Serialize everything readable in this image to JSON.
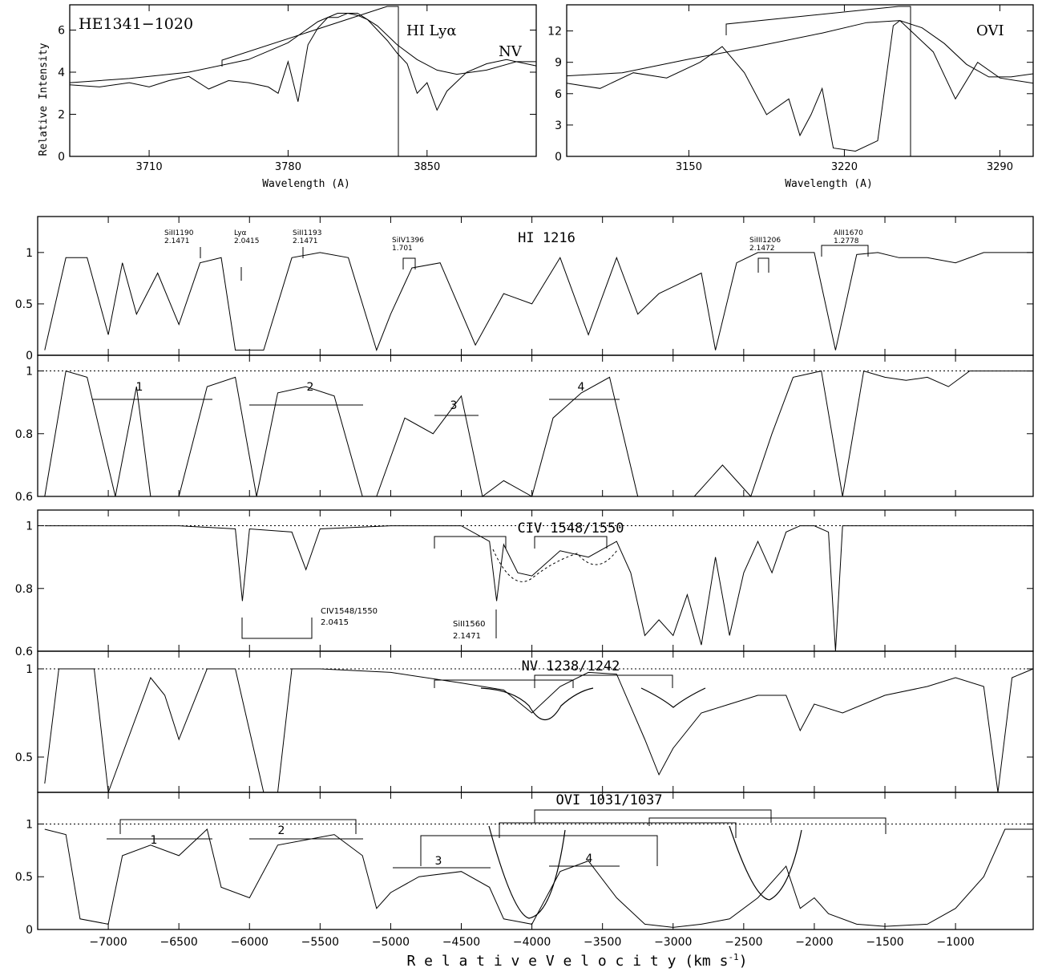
{
  "figure": {
    "x_axis_label": "R e l a t i v e     V e l o c i t y   (km s",
    "x_axis_sup": "-1",
    "x_axis_close": ")",
    "colors": {
      "line": "#000000",
      "background": "#ffffff"
    }
  },
  "chart_data": [
    {
      "type": "line",
      "id": "top-left",
      "object_label": "HE1341−1020",
      "xlabel": "Wavelength (A)",
      "ylabel": "Relative Intensity",
      "xlim": [
        3670,
        3905
      ],
      "ylim": [
        0,
        7.2
      ],
      "xticks": [
        3710,
        3780,
        3850
      ],
      "yticks": [
        0,
        2,
        4,
        6
      ],
      "annotations": [
        "HI  Lyα",
        "NV"
      ],
      "series": [
        {
          "kind": "spectrum",
          "x": [
            3670,
            3685,
            3700,
            3710,
            3720,
            3730,
            3740,
            3750,
            3760,
            3770,
            3775,
            3780,
            3785,
            3790,
            3795,
            3800,
            3805,
            3810,
            3815,
            3820,
            3825,
            3830,
            3835,
            3840,
            3845,
            3850,
            3855,
            3860,
            3870,
            3880,
            3890,
            3905
          ],
          "y": [
            3.4,
            3.3,
            3.5,
            3.3,
            3.6,
            3.8,
            3.2,
            3.6,
            3.5,
            3.3,
            3.0,
            4.5,
            2.6,
            5.3,
            6.1,
            6.6,
            6.6,
            6.8,
            6.7,
            6.5,
            6.0,
            5.5,
            4.9,
            4.4,
            3.0,
            3.5,
            2.2,
            3.1,
            4.0,
            4.4,
            4.6,
            4.3
          ]
        },
        {
          "kind": "continuum",
          "x": [
            3670,
            3700,
            3730,
            3760,
            3780,
            3795,
            3805,
            3815,
            3825,
            3835,
            3845,
            3855,
            3865,
            3880,
            3895,
            3905
          ],
          "y": [
            3.5,
            3.7,
            4.0,
            4.6,
            5.4,
            6.4,
            6.8,
            6.8,
            6.2,
            5.3,
            4.6,
            4.1,
            3.9,
            4.1,
            4.5,
            4.5
          ]
        }
      ]
    },
    {
      "type": "line",
      "id": "top-right",
      "object_label": "",
      "xlabel": "Wavelength (A)",
      "ylabel": "",
      "xlim": [
        3095,
        3305
      ],
      "ylim": [
        0,
        14.5
      ],
      "xticks": [
        3150,
        3220,
        3290
      ],
      "yticks": [
        0,
        3,
        6,
        9,
        12
      ],
      "annotations": [
        "OVI"
      ],
      "series": [
        {
          "kind": "spectrum",
          "x": [
            3095,
            3110,
            3125,
            3140,
            3155,
            3165,
            3175,
            3185,
            3195,
            3200,
            3205,
            3210,
            3215,
            3225,
            3235,
            3242,
            3245,
            3250,
            3260,
            3270,
            3280,
            3290,
            3305
          ],
          "y": [
            7.0,
            6.5,
            8.0,
            7.5,
            9.0,
            10.5,
            8.0,
            4.0,
            5.5,
            2.0,
            4.0,
            6.5,
            0.8,
            0.5,
            1.5,
            12.5,
            13.0,
            12.0,
            10.0,
            5.5,
            9.0,
            7.5,
            7.0
          ]
        },
        {
          "kind": "continuum",
          "x": [
            3095,
            3120,
            3150,
            3180,
            3210,
            3230,
            3245,
            3255,
            3265,
            3275,
            3285,
            3295,
            3305
          ],
          "y": [
            7.7,
            8.0,
            9.3,
            10.5,
            11.8,
            12.8,
            13.0,
            12.3,
            10.8,
            8.8,
            7.6,
            7.6,
            7.9
          ]
        }
      ]
    },
    {
      "type": "line",
      "id": "hi-1216",
      "title": "HI 1216",
      "xlabel": "",
      "ylabel": "",
      "xlim": [
        -7500,
        -450
      ],
      "ylim": [
        0,
        1.35
      ],
      "yticks": [
        0,
        0.5,
        1
      ],
      "markers": [
        {
          "label": "SiII1190",
          "z": "2.1471"
        },
        {
          "label": "Lyα",
          "z": "2.0415"
        },
        {
          "label": "SiII1193",
          "z": "2.1471"
        },
        {
          "label": "SiIV1396",
          "z": "1.701"
        },
        {
          "label": "SiIII1206",
          "z": "2.1472"
        },
        {
          "label": "AlII1670",
          "z": "1.2778"
        }
      ],
      "series": [
        {
          "name": "",
          "x": [
            -7450,
            -7300,
            -7150,
            -7000,
            -6900,
            -6800,
            -6650,
            -6500,
            -6350,
            -6200,
            -6100,
            -5900,
            -5700,
            -5500,
            -5300,
            -5100,
            -5000,
            -4850,
            -4650,
            -4400,
            -4200,
            -4000,
            -3800,
            -3600,
            -3400,
            -3250,
            -3100,
            -2950,
            -2800,
            -2700,
            -2550,
            -2400,
            -2200,
            -2000,
            -1850,
            -1700,
            -1550,
            -1400,
            -1200,
            -1000,
            -800,
            -600,
            -450
          ],
          "y": [
            0.05,
            0.95,
            0.95,
            0.2,
            0.9,
            0.4,
            0.8,
            0.3,
            0.9,
            0.95,
            0.05,
            0.05,
            0.95,
            1.0,
            0.95,
            0.05,
            0.4,
            0.85,
            0.9,
            0.1,
            0.6,
            0.5,
            0.95,
            0.2,
            0.95,
            0.4,
            0.6,
            0.7,
            0.8,
            0.05,
            0.9,
            1.0,
            1.0,
            1.0,
            0.05,
            0.98,
            1.0,
            0.95,
            0.95,
            0.9,
            1.0,
            1.0,
            1.0
          ]
        }
      ]
    },
    {
      "type": "line",
      "id": "hi-zoom",
      "title": "",
      "xlim": [
        -7500,
        -450
      ],
      "ylim": [
        0.6,
        1.05
      ],
      "yticks": [
        0.6,
        0.8,
        1
      ],
      "reference_level": 1.0,
      "systems": [
        "1",
        "2",
        "3",
        "4"
      ],
      "series": [
        {
          "name": "",
          "x": [
            -7450,
            -7300,
            -7150,
            -6950,
            -6800,
            -6700,
            -6500,
            -6300,
            -6100,
            -5950,
            -5800,
            -5600,
            -5400,
            -5200,
            -5100,
            -4900,
            -4700,
            -4500,
            -4350,
            -4200,
            -4000,
            -3850,
            -3650,
            -3450,
            -3250,
            -3050,
            -2850,
            -2650,
            -2450,
            -2300,
            -2150,
            -1950,
            -1800,
            -1650,
            -1500,
            -1350,
            -1200,
            -1050,
            -900,
            -700,
            -450
          ],
          "y": [
            0.6,
            1.0,
            0.98,
            0.6,
            0.95,
            0.6,
            0.6,
            0.95,
            0.98,
            0.6,
            0.93,
            0.95,
            0.92,
            0.6,
            0.6,
            0.85,
            0.8,
            0.92,
            0.6,
            0.65,
            0.6,
            0.85,
            0.93,
            0.98,
            0.6,
            0.6,
            0.6,
            0.7,
            0.6,
            0.8,
            0.98,
            1.0,
            0.6,
            1.0,
            0.98,
            0.97,
            0.98,
            0.95,
            1.0,
            1.0,
            1.0
          ]
        }
      ]
    },
    {
      "type": "line",
      "id": "civ",
      "title": "CIV  1548/1550",
      "xlim": [
        -7500,
        -450
      ],
      "ylim": [
        0.6,
        1.05
      ],
      "yticks": [
        0.6,
        0.8,
        1
      ],
      "reference_level": 1.0,
      "markers": [
        {
          "label": "CIV1548/1550",
          "z": "2.0415"
        },
        {
          "label": "SiII1560",
          "z": "2.1471"
        }
      ],
      "series": [
        {
          "name": "",
          "x": [
            -7450,
            -7000,
            -6500,
            -6100,
            -6050,
            -6000,
            -5700,
            -5600,
            -5500,
            -5000,
            -4500,
            -4300,
            -4250,
            -4200,
            -4100,
            -4000,
            -3800,
            -3600,
            -3400,
            -3300,
            -3200,
            -3100,
            -3000,
            -2900,
            -2800,
            -2700,
            -2600,
            -2500,
            -2400,
            -2300,
            -2200,
            -2100,
            -2000,
            -1900,
            -1850,
            -1800,
            -1500,
            -1000,
            -450
          ],
          "y": [
            1.0,
            1.0,
            1.0,
            0.99,
            0.76,
            0.99,
            0.98,
            0.86,
            0.99,
            1.0,
            1.0,
            0.95,
            0.76,
            0.94,
            0.85,
            0.84,
            0.92,
            0.9,
            0.95,
            0.85,
            0.65,
            0.7,
            0.65,
            0.78,
            0.62,
            0.9,
            0.65,
            0.85,
            0.95,
            0.85,
            0.98,
            1.0,
            1.0,
            0.98,
            0.6,
            1.0,
            1.0,
            1.0,
            1.0
          ]
        }
      ]
    },
    {
      "type": "line",
      "id": "nv",
      "title": "NV  1238/1242",
      "xlim": [
        -7500,
        -450
      ],
      "ylim": [
        0.3,
        1.1
      ],
      "yticks": [
        0.5,
        1
      ],
      "reference_level": 1.0,
      "series": [
        {
          "name": "",
          "x": [
            -7450,
            -7350,
            -7250,
            -7100,
            -7000,
            -6700,
            -6600,
            -6500,
            -6300,
            -6100,
            -5900,
            -5800,
            -5700,
            -5500,
            -5000,
            -4500,
            -4200,
            -4000,
            -3800,
            -3600,
            -3400,
            -3200,
            -3100,
            -3000,
            -2800,
            -2600,
            -2400,
            -2200,
            -2100,
            -2000,
            -1800,
            -1500,
            -1200,
            -1000,
            -800,
            -700,
            -600,
            -450
          ],
          "y": [
            0.35,
            1.0,
            1.0,
            1.0,
            0.3,
            0.95,
            0.85,
            0.6,
            1.0,
            1.0,
            0.3,
            0.3,
            1.0,
            1.0,
            0.98,
            0.92,
            0.88,
            0.75,
            0.9,
            0.98,
            0.97,
            0.6,
            0.4,
            0.55,
            0.75,
            0.8,
            0.85,
            0.85,
            0.65,
            0.8,
            0.75,
            0.85,
            0.9,
            0.95,
            0.9,
            0.3,
            0.95,
            1.0
          ]
        }
      ]
    },
    {
      "type": "line",
      "id": "ovi",
      "title": "OVI  1031/1037",
      "xlim": [
        -7500,
        -450
      ],
      "ylim": [
        0,
        1.3
      ],
      "yticks": [
        0,
        0.5,
        1
      ],
      "reference_level": 1.0,
      "xticks": [
        -7000,
        -6500,
        -6000,
        -5500,
        -5000,
        -4500,
        -4000,
        -3500,
        -3000,
        -2500,
        -2000,
        -1500,
        -1000
      ],
      "xtick_labels": [
        "−7000",
        "−6500",
        "−6000",
        "−5500",
        "−5000",
        "−4500",
        "−4000",
        "−3500",
        "−3000",
        "−2500",
        "−2000",
        "−1500",
        "−1000"
      ],
      "systems": [
        "1",
        "2",
        "3",
        "4"
      ],
      "series": [
        {
          "name": "",
          "x": [
            -7450,
            -7300,
            -7200,
            -7000,
            -6900,
            -6700,
            -6500,
            -6300,
            -6200,
            -6000,
            -5800,
            -5600,
            -5400,
            -5200,
            -5100,
            -5000,
            -4800,
            -4500,
            -4300,
            -4200,
            -4000,
            -3800,
            -3600,
            -3400,
            -3200,
            -3000,
            -2800,
            -2600,
            -2400,
            -2200,
            -2100,
            -2000,
            -1900,
            -1700,
            -1500,
            -1200,
            -1000,
            -800,
            -650,
            -450
          ],
          "y": [
            0.95,
            0.9,
            0.1,
            0.05,
            0.7,
            0.8,
            0.7,
            0.95,
            0.4,
            0.3,
            0.8,
            0.85,
            0.9,
            0.7,
            0.2,
            0.35,
            0.5,
            0.55,
            0.4,
            0.1,
            0.05,
            0.55,
            0.65,
            0.3,
            0.05,
            0.02,
            0.05,
            0.1,
            0.3,
            0.6,
            0.2,
            0.3,
            0.15,
            0.05,
            0.03,
            0.05,
            0.2,
            0.5,
            0.95,
            0.95
          ]
        }
      ]
    }
  ]
}
